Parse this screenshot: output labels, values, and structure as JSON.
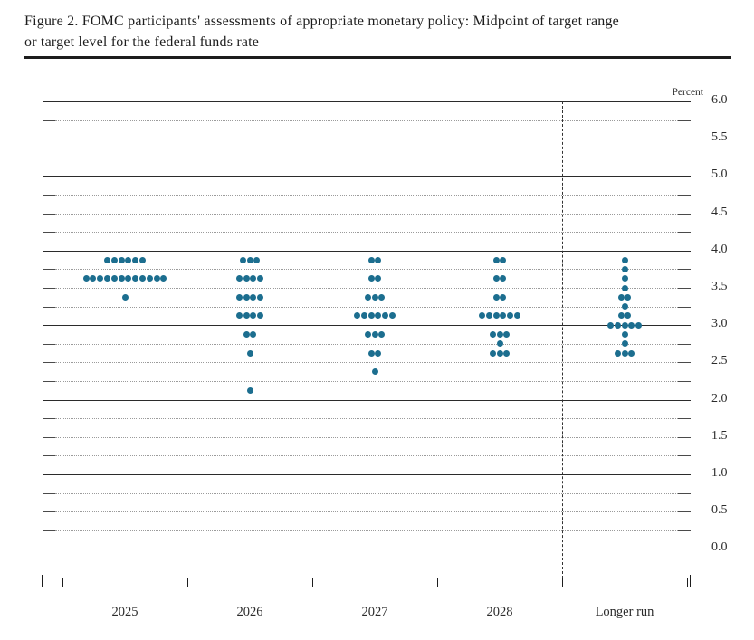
{
  "title": {
    "line1": "Figure 2. FOMC participants' assessments of appropriate monetary policy: Midpoint of target range",
    "line2": "or target level for the federal funds rate"
  },
  "colors": {
    "dot": "#1c6e8f",
    "solid_line": "#2b2b2b",
    "dotted_line": "#9b9b9b",
    "axis": "#1d1d1d"
  },
  "chart_data": {
    "type": "scatter",
    "title": "FOMC participants' assessments of appropriate monetary policy: Midpoint of target range or target level for the federal funds rate",
    "ylabel": "Percent",
    "percent_label": "Percent",
    "ylim": [
      0.0,
      6.0
    ],
    "grid_step": 0.25,
    "solid_gridlines_at": [
      1.0,
      2.0,
      3.0,
      4.0,
      5.0,
      6.0
    ],
    "y_label_step": 0.5,
    "y_tick_labels": [
      "6.0",
      "5.5",
      "5.0",
      "4.5",
      "4.0",
      "3.5",
      "3.0",
      "2.5",
      "2.0",
      "1.5",
      "1.0",
      "0.5",
      "0.0"
    ],
    "legend": "none",
    "grid": "dotted-quarters",
    "separator_after_category": "2028",
    "categories": [
      "2025",
      "2026",
      "2027",
      "2028",
      "Longer run"
    ],
    "series": [
      {
        "name": "2025",
        "distribution": [
          {
            "rate": 3.875,
            "count": 6
          },
          {
            "rate": 3.625,
            "count": 12
          },
          {
            "rate": 3.375,
            "count": 1
          }
        ]
      },
      {
        "name": "2026",
        "distribution": [
          {
            "rate": 3.875,
            "count": 3
          },
          {
            "rate": 3.625,
            "count": 4
          },
          {
            "rate": 3.375,
            "count": 4
          },
          {
            "rate": 3.125,
            "count": 4
          },
          {
            "rate": 2.875,
            "count": 2
          },
          {
            "rate": 2.625,
            "count": 1
          },
          {
            "rate": 2.125,
            "count": 1
          }
        ]
      },
      {
        "name": "2027",
        "distribution": [
          {
            "rate": 3.875,
            "count": 2
          },
          {
            "rate": 3.625,
            "count": 2
          },
          {
            "rate": 3.375,
            "count": 3
          },
          {
            "rate": 3.125,
            "count": 6
          },
          {
            "rate": 2.875,
            "count": 3
          },
          {
            "rate": 2.625,
            "count": 2
          },
          {
            "rate": 2.375,
            "count": 1
          }
        ]
      },
      {
        "name": "2028",
        "distribution": [
          {
            "rate": 3.875,
            "count": 2
          },
          {
            "rate": 3.625,
            "count": 2
          },
          {
            "rate": 3.375,
            "count": 2
          },
          {
            "rate": 3.125,
            "count": 6
          },
          {
            "rate": 2.875,
            "count": 3
          },
          {
            "rate": 2.75,
            "count": 1
          },
          {
            "rate": 2.625,
            "count": 3
          }
        ]
      },
      {
        "name": "Longer run",
        "distribution": [
          {
            "rate": 3.875,
            "count": 1
          },
          {
            "rate": 3.75,
            "count": 1
          },
          {
            "rate": 3.625,
            "count": 1
          },
          {
            "rate": 3.5,
            "count": 1
          },
          {
            "rate": 3.375,
            "count": 2
          },
          {
            "rate": 3.25,
            "count": 1
          },
          {
            "rate": 3.125,
            "count": 2
          },
          {
            "rate": 3.0,
            "count": 5
          },
          {
            "rate": 2.875,
            "count": 1
          },
          {
            "rate": 2.75,
            "count": 1
          },
          {
            "rate": 2.625,
            "count": 3
          }
        ]
      }
    ]
  }
}
